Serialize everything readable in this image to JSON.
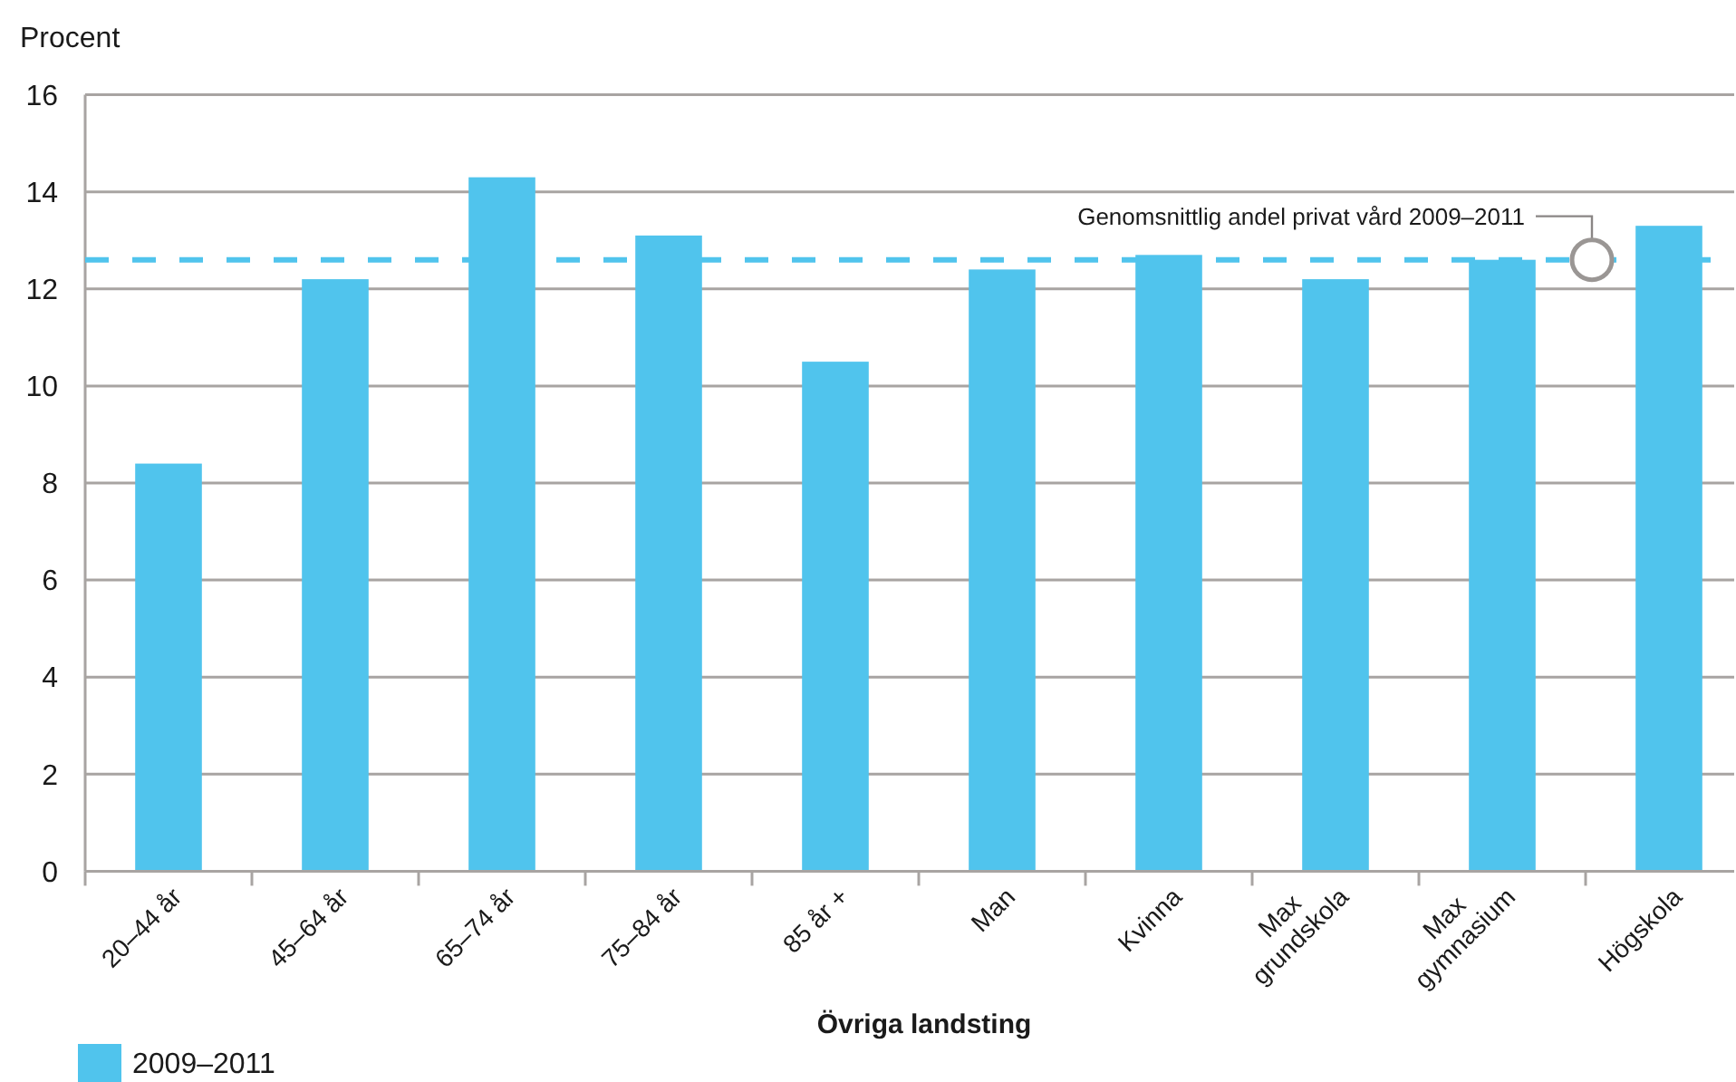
{
  "chart_data": {
    "type": "bar",
    "ylabel": "Procent",
    "xlabel": "Övriga landsting",
    "categories": [
      "20–44 år",
      "45–64 år",
      "65–74 år",
      "75–84 år",
      "85 år +",
      "Man",
      "Kvinna",
      "Max grundskola",
      "Max gymnasium",
      "Högskola"
    ],
    "series": [
      {
        "name": "2009–2011",
        "color": "#50c4ed",
        "values": [
          8.4,
          12.2,
          14.3,
          13.1,
          10.5,
          12.4,
          12.7,
          12.2,
          12.6,
          13.3
        ]
      }
    ],
    "ylim": [
      0,
      16
    ],
    "yticks": [
      0,
      2,
      4,
      6,
      8,
      10,
      12,
      14,
      16
    ],
    "grid": "y",
    "legend": "bottom left",
    "ref_lines": [
      {
        "axis": "y",
        "value": 12.6,
        "label": "Genomsnittlig andel privat vård 2009–2011",
        "color": "#50c4ed",
        "line_style": "dashed"
      }
    ]
  }
}
